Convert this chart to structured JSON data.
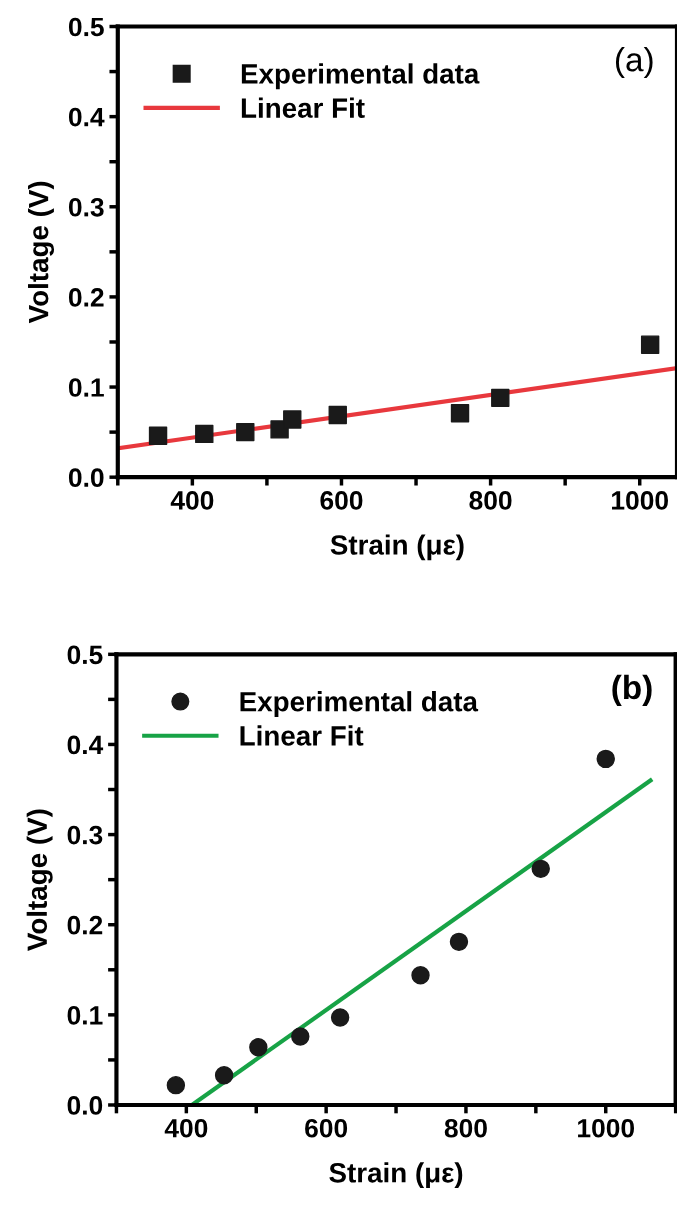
{
  "chart_data": [
    {
      "type": "scatter",
      "xlabel": "Strain (με)",
      "ylabel": "Voltage (V)",
      "annotations": [
        "(a)"
      ],
      "xlim": [
        300,
        1050
      ],
      "ylim": [
        0,
        0.5
      ],
      "xticks": [
        {
          "value": 300,
          "label": null
        },
        400,
        {
          "value": 500,
          "label": null
        },
        600,
        {
          "value": 700,
          "label": null
        },
        800,
        {
          "value": 900,
          "label": null
        },
        1000
      ],
      "yticks": [
        {
          "value": 0,
          "label": "0.0"
        },
        {
          "value": 0.05,
          "label": null
        },
        0.1,
        {
          "value": 0.15,
          "label": null
        },
        0.2,
        {
          "value": 0.25,
          "label": null
        },
        0.3,
        {
          "value": 0.35,
          "label": null
        },
        0.4,
        {
          "value": 0.45,
          "label": null
        },
        0.5
      ],
      "grid": false,
      "legend": "top left",
      "series": [
        {
          "name": "Experimental data",
          "marker": "square",
          "color": "#1a1a1a",
          "x": [
            354,
            416,
            471,
            517,
            534,
            595,
            759,
            813,
            1014
          ],
          "values": [
            0.046,
            0.048,
            0.05,
            0.053,
            0.064,
            0.069,
            0.071,
            0.088,
            0.147
          ]
        },
        {
          "name": "Linear Fit",
          "type": "line",
          "line_style": "solid",
          "marker": "none",
          "color": "#e8383d",
          "x": [
            300,
            1050
          ],
          "values": [
            0.032,
            0.121
          ]
        }
      ]
    },
    {
      "type": "scatter",
      "xlabel": "Strain (με)",
      "ylabel": "Voltage (V)",
      "annotations": [
        "(b)"
      ],
      "xlim": [
        300,
        1100
      ],
      "ylim": [
        0,
        0.5
      ],
      "xticks": [
        {
          "value": 300,
          "label": null
        },
        400,
        {
          "value": 500,
          "label": null
        },
        600,
        {
          "value": 700,
          "label": null
        },
        800,
        {
          "value": 900,
          "label": null
        },
        1000,
        {
          "value": 1100,
          "label": null
        }
      ],
      "yticks": [
        {
          "value": 0,
          "label": "0.0"
        },
        {
          "value": 0.05,
          "label": null
        },
        0.1,
        {
          "value": 0.15,
          "label": null
        },
        0.2,
        {
          "value": 0.25,
          "label": null
        },
        0.3,
        {
          "value": 0.35,
          "label": null
        },
        0.4,
        {
          "value": 0.45,
          "label": null
        },
        0.5
      ],
      "grid": false,
      "legend": "top left",
      "series": [
        {
          "name": "Experimental data",
          "marker": "circle",
          "color": "#1a1a1a",
          "x": [
            385,
            454,
            503,
            563,
            620,
            735,
            790,
            907,
            1000
          ],
          "values": [
            0.022,
            0.033,
            0.064,
            0.076,
            0.097,
            0.144,
            0.181,
            0.262,
            0.384
          ]
        },
        {
          "name": "Linear Fit",
          "type": "line",
          "line_style": "solid",
          "marker": "none",
          "color": "#17a346",
          "x": [
            408,
            1064
          ],
          "values": [
            0,
            0.36
          ]
        }
      ]
    }
  ]
}
